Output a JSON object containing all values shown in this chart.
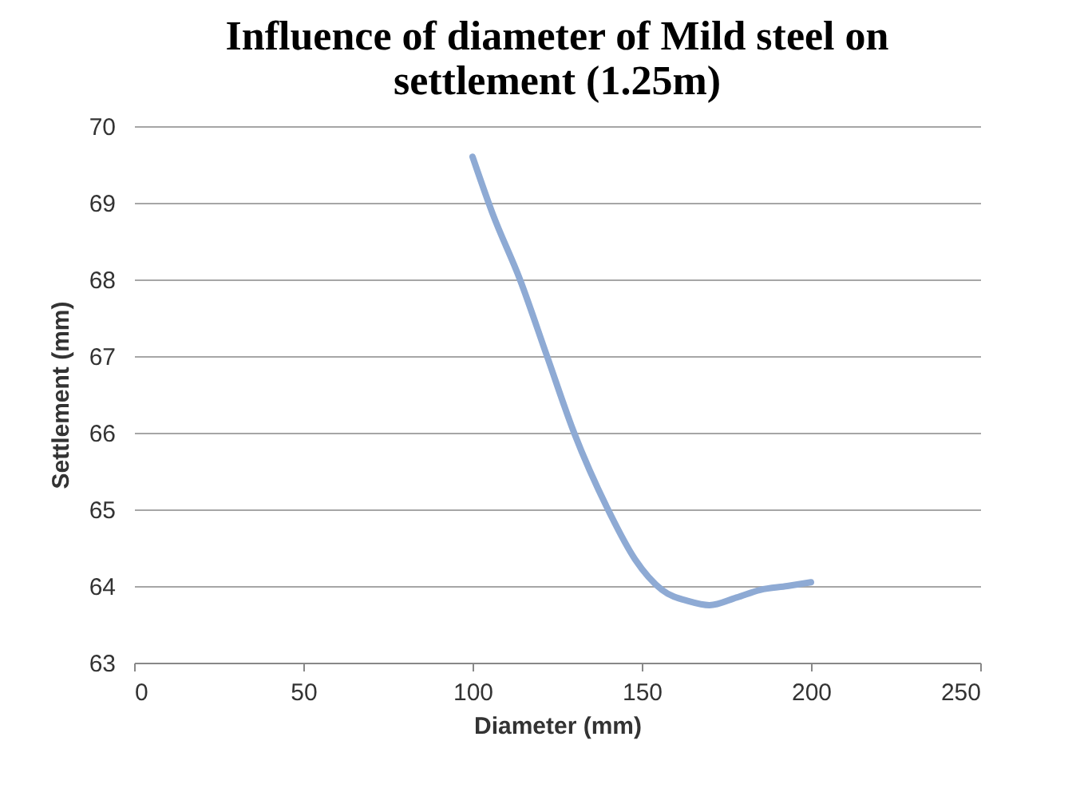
{
  "chart_data": {
    "type": "line",
    "title": "Influence of diameter of  Mild steel on settlement (1.25m)",
    "xlabel": "Diameter (mm)",
    "ylabel": "Settlement (mm)",
    "x": [
      100,
      106,
      114,
      122,
      130,
      140,
      148,
      156,
      164,
      170,
      178,
      185,
      193,
      200
    ],
    "series": [
      {
        "color": "#8eaad4",
        "values": [
          69.6,
          68.85,
          68.0,
          67.0,
          66.0,
          65.0,
          64.35,
          63.95,
          63.8,
          63.75,
          63.85,
          63.95,
          64.0,
          64.05
        ]
      }
    ],
    "xlim": [
      0,
      250
    ],
    "xticks": [
      0,
      50,
      100,
      150,
      200,
      250
    ],
    "ylim": [
      63,
      70
    ],
    "yticks": [
      63,
      64,
      65,
      66,
      67,
      68,
      69,
      70
    ],
    "grid": "y",
    "legend": false,
    "marker": "none",
    "line_style": "solid"
  }
}
